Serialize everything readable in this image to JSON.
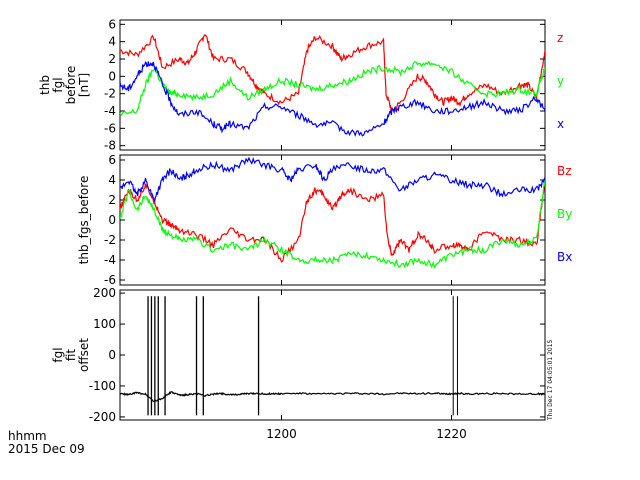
{
  "timestamp_vertical": "Thu Dec 17 04:05:01 2015",
  "footer": {
    "time_unit": "hhmm",
    "date": "2015 Dec 09"
  },
  "x_axis": {
    "ticks": [
      1200,
      1220
    ],
    "tick_labels": [
      "1200",
      "1220"
    ],
    "range": [
      1181,
      1231
    ]
  },
  "colors": {
    "red": "#ff0000",
    "green": "#00ff00",
    "blue": "#0000ff",
    "black": "#000000"
  },
  "chart_data": [
    {
      "type": "line",
      "ylabel_lines": [
        "thb",
        "fgl",
        "before",
        "[nT]"
      ],
      "ylim": [
        -8.5,
        6.5
      ],
      "yticks": [
        6,
        4,
        2,
        0,
        -2,
        -4,
        -6,
        -8
      ],
      "ytick_labels": [
        "6",
        "4",
        "2",
        "0",
        "-2",
        "-4",
        "-6",
        "-8"
      ],
      "series": [
        {
          "name": "z",
          "color": "#ff0000",
          "x": [
            1181,
            1183,
            1185,
            1186,
            1188,
            1189,
            1190,
            1191,
            1192,
            1194,
            1196,
            1197,
            1198,
            1200,
            1202,
            1203,
            1204,
            1206,
            1207,
            1208,
            1210,
            1212,
            1212.3,
            1213,
            1214,
            1216,
            1217,
            1218,
            1219,
            1220,
            1221,
            1222,
            1224,
            1226,
            1228,
            1229,
            1230,
            1231
          ],
          "y": [
            3,
            2.5,
            4.5,
            1,
            2,
            1.5,
            3,
            5,
            2,
            2,
            0.5,
            -1,
            -2,
            -3,
            -2,
            3,
            4.5,
            3.5,
            2,
            2.5,
            3.5,
            4,
            -2,
            -4,
            -3,
            0,
            -0.5,
            -2,
            -3,
            -2.5,
            -3,
            -2,
            -1,
            -2,
            -1,
            -1,
            -2.5,
            3
          ]
        },
        {
          "name": "y",
          "color": "#00ff00",
          "x": [
            1181,
            1183,
            1184,
            1185,
            1186,
            1187,
            1188,
            1190,
            1192,
            1194,
            1196,
            1198,
            1200,
            1202,
            1204,
            1206,
            1208,
            1210,
            1212,
            1214,
            1216,
            1218,
            1220,
            1222,
            1224,
            1226,
            1228,
            1230,
            1231
          ],
          "y": [
            -4.5,
            -4,
            -1,
            1,
            -1,
            -2,
            -2,
            -2.5,
            -2,
            -0.5,
            -2.5,
            -1.5,
            -0.5,
            -1,
            -1.5,
            -1,
            -0.5,
            0.5,
            1,
            0.5,
            1.5,
            1.5,
            0.5,
            -1,
            -2,
            -2,
            -1.5,
            -2,
            1
          ]
        },
        {
          "name": "x",
          "color": "#0000ff",
          "x": [
            1181,
            1182,
            1183,
            1184,
            1185,
            1186,
            1187,
            1188,
            1190,
            1192,
            1193,
            1194,
            1196,
            1198,
            1200,
            1202,
            1204,
            1206,
            1208,
            1210,
            1212,
            1213,
            1214,
            1216,
            1218,
            1220,
            1222,
            1224,
            1226,
            1228,
            1230,
            1231
          ],
          "y": [
            -1,
            -1.5,
            0,
            1.5,
            1.5,
            -1,
            -3,
            -4.5,
            -4,
            -5.5,
            -6,
            -5.5,
            -6,
            -3.5,
            -3.5,
            -4.5,
            -5.5,
            -5.5,
            -6.5,
            -6.5,
            -5.5,
            -4,
            -3.5,
            -3,
            -4,
            -4,
            -3.5,
            -3,
            -4,
            -4,
            -2.5,
            -4
          ]
        }
      ]
    },
    {
      "type": "line",
      "ylabel_lines": [
        "thb_fgs_before"
      ],
      "ylim": [
        -6.5,
        6.5
      ],
      "yticks": [
        6,
        4,
        2,
        0,
        -2,
        -4,
        -6
      ],
      "ytick_labels": [
        "6",
        "4",
        "2",
        "0",
        "-2",
        "-4",
        "-6"
      ],
      "series": [
        {
          "name": "Bz",
          "color": "#ff0000",
          "x": [
            1181,
            1182,
            1183,
            1184,
            1185,
            1186,
            1187,
            1188,
            1190,
            1192,
            1194,
            1196,
            1198,
            1200,
            1202,
            1203,
            1204,
            1205,
            1206,
            1207,
            1208,
            1210,
            1212,
            1212.5,
            1213,
            1214,
            1215,
            1216,
            1217,
            1218,
            1220,
            1221,
            1222,
            1224,
            1226,
            1228,
            1230,
            1231
          ],
          "y": [
            1,
            3,
            2,
            3.5,
            2,
            0,
            -0.5,
            -1,
            -1.5,
            -2.5,
            -1,
            -2,
            -2,
            -4,
            -2,
            2,
            3,
            2.5,
            1,
            2.5,
            3,
            2,
            2.5,
            -2,
            -3.5,
            -2,
            -3,
            -1.5,
            -2,
            -3,
            -2.5,
            -2.5,
            -3,
            -1,
            -2,
            -2,
            -2.5,
            4
          ]
        },
        {
          "name": "By",
          "color": "#00ff00",
          "x": [
            1181,
            1182,
            1183,
            1184,
            1185,
            1186,
            1187,
            1188,
            1190,
            1192,
            1194,
            1196,
            1198,
            1200,
            1202,
            1204,
            1206,
            1208,
            1210,
            1212,
            1214,
            1216,
            1218,
            1220,
            1222,
            1224,
            1226,
            1228,
            1230,
            1231
          ],
          "y": [
            0,
            3,
            1,
            2.5,
            1,
            -1,
            -1.5,
            -2,
            -2,
            -3,
            -2.5,
            -3,
            -2,
            -3,
            -4,
            -4,
            -4,
            -3.5,
            -3.5,
            -4,
            -4.5,
            -4,
            -4.5,
            -3.5,
            -3,
            -3,
            -2,
            -2.5,
            -2,
            4
          ]
        },
        {
          "name": "Bx",
          "color": "#0000ff",
          "x": [
            1181,
            1182,
            1183,
            1184,
            1185,
            1186,
            1187,
            1188,
            1189,
            1190,
            1192,
            1194,
            1196,
            1198,
            1200,
            1201,
            1202,
            1204,
            1205,
            1206,
            1208,
            1210,
            1212,
            1214,
            1216,
            1218,
            1220,
            1222,
            1224,
            1226,
            1228,
            1230,
            1231
          ],
          "y": [
            3,
            4,
            2.5,
            4,
            2,
            4,
            5,
            4,
            4.5,
            5,
            5.5,
            5,
            6,
            5.5,
            5,
            4,
            5,
            5.5,
            4,
            5,
            5.5,
            5,
            5,
            3,
            4,
            4.5,
            4,
            3.5,
            3.5,
            2.5,
            3,
            3,
            4
          ]
        }
      ]
    },
    {
      "type": "line",
      "ylabel_lines": [
        "fgl",
        "fit",
        "offset"
      ],
      "ylim": [
        -210,
        210
      ],
      "yticks": [
        200,
        100,
        0,
        -100,
        -200
      ],
      "ytick_labels": [
        "200",
        "100",
        "0",
        "-100",
        "-200"
      ],
      "baseline": -125,
      "spikes": [
        1184.3,
        1184.7,
        1185.1,
        1185.5,
        1186.3,
        1190.0,
        1190.8,
        1197.3
      ],
      "spike_top": 190,
      "spike_bottom": -195,
      "series": [
        {
          "name": "",
          "color": "#000000",
          "x": [
            1181,
            1182,
            1183,
            1184,
            1185,
            1186,
            1187,
            1188,
            1189,
            1190,
            1191,
            1192,
            1193,
            1194,
            1195,
            1196,
            1197,
            1198,
            1199,
            1200,
            1202,
            1204,
            1206,
            1208,
            1210,
            1212,
            1214,
            1216,
            1218,
            1219,
            1220,
            1221,
            1222,
            1224,
            1226,
            1228,
            1230,
            1231
          ],
          "y": [
            -125,
            -128,
            -122,
            -126,
            -150,
            -140,
            -120,
            -130,
            -128,
            -125,
            -132,
            -126,
            -124,
            -129,
            -127,
            -125,
            -124,
            -126,
            -125,
            -125,
            -124,
            -126,
            -125,
            -124,
            -125,
            -126,
            -124,
            -125,
            -123,
            -126,
            -125,
            -124,
            -126,
            -125,
            -124,
            -126,
            -125,
            -127
          ]
        }
      ],
      "gap_lines": [
        1220.2,
        1220.7
      ]
    }
  ]
}
